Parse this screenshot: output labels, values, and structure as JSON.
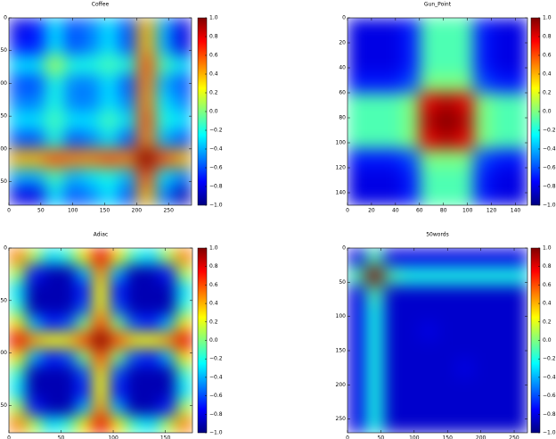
{
  "chart_data": [
    {
      "type": "heatmap",
      "title": "Coffee",
      "colormap": "jet",
      "xlim": [
        0,
        286
      ],
      "ylim": [
        286,
        0
      ],
      "xticks": [
        0,
        50,
        100,
        150,
        200,
        250
      ],
      "yticks": [
        0,
        50,
        100,
        150,
        200,
        250
      ],
      "zlim": [
        -1,
        1
      ],
      "zticks": [
        {
          "value": -1,
          "label": "−1.0"
        },
        {
          "value": -0.8,
          "label": "−0.8"
        },
        {
          "value": -0.6,
          "label": "−0.6"
        },
        {
          "value": -0.4,
          "label": "−0.4"
        },
        {
          "value": -0.2,
          "label": "−0.2"
        },
        {
          "value": 0,
          "label": "0.0"
        },
        {
          "value": 0.2,
          "label": "0.2"
        },
        {
          "value": 0.4,
          "label": "0.4"
        },
        {
          "value": 0.6,
          "label": "0.6"
        },
        {
          "value": 0.8,
          "label": "0.8"
        },
        {
          "value": 1,
          "label": "1.0"
        }
      ],
      "z": [
        [
          -0.8,
          -0.7,
          -0.3,
          -0.6,
          -0.5,
          -0.3,
          -0.6,
          0.4,
          -0.4,
          -0.8
        ],
        [
          -0.7,
          -0.7,
          -0.3,
          -0.6,
          -0.5,
          -0.3,
          -0.6,
          0.4,
          -0.4,
          -0.8
        ],
        [
          -0.3,
          -0.3,
          0.1,
          -0.2,
          -0.2,
          -0.1,
          -0.2,
          0.6,
          -0.1,
          -0.3
        ],
        [
          -0.6,
          -0.6,
          -0.2,
          -0.5,
          -0.5,
          -0.3,
          -0.6,
          0.5,
          -0.4,
          -0.6
        ],
        [
          -0.5,
          -0.5,
          -0.2,
          -0.5,
          -0.5,
          -0.3,
          -0.5,
          0.5,
          -0.3,
          -0.5
        ],
        [
          -0.3,
          -0.3,
          -0.1,
          -0.3,
          -0.3,
          -0.1,
          -0.3,
          0.6,
          -0.2,
          -0.3
        ],
        [
          -0.6,
          -0.6,
          -0.2,
          -0.6,
          -0.5,
          -0.3,
          -0.6,
          0.5,
          -0.4,
          -0.6
        ],
        [
          0.4,
          0.4,
          0.6,
          0.5,
          0.5,
          0.6,
          0.5,
          1.0,
          0.6,
          0.4
        ],
        [
          -0.4,
          -0.4,
          -0.1,
          -0.4,
          -0.3,
          -0.2,
          -0.4,
          0.6,
          -0.3,
          -0.5
        ],
        [
          -0.8,
          -0.8,
          -0.3,
          -0.6,
          -0.5,
          -0.3,
          -0.6,
          0.4,
          -0.5,
          -0.9
        ]
      ]
    },
    {
      "type": "heatmap",
      "title": "Gun_Point",
      "colormap": "jet",
      "xlim": [
        0,
        150
      ],
      "ylim": [
        150,
        0
      ],
      "xticks": [
        0,
        20,
        40,
        60,
        80,
        100,
        120,
        140
      ],
      "yticks": [
        0,
        20,
        40,
        60,
        80,
        100,
        120,
        140
      ],
      "zlim": [
        -1,
        1
      ],
      "zticks": [
        {
          "value": -1,
          "label": "−1.0"
        },
        {
          "value": -0.8,
          "label": "−0.8"
        },
        {
          "value": -0.6,
          "label": "−0.6"
        },
        {
          "value": -0.4,
          "label": "−0.4"
        },
        {
          "value": -0.2,
          "label": "−0.2"
        },
        {
          "value": 0,
          "label": "0.0"
        },
        {
          "value": 0.2,
          "label": "0.2"
        },
        {
          "value": 0.4,
          "label": "0.4"
        },
        {
          "value": 0.6,
          "label": "0.6"
        },
        {
          "value": 0.8,
          "label": "0.8"
        },
        {
          "value": 1,
          "label": "1.0"
        }
      ],
      "z": [
        [
          -0.8,
          -0.8,
          -0.8,
          -0.7,
          -0.1,
          -0.1,
          -0.1,
          -0.7,
          -0.8,
          -0.8
        ],
        [
          -0.8,
          -0.8,
          -0.8,
          -0.7,
          -0.1,
          -0.1,
          -0.1,
          -0.7,
          -0.8,
          -0.8
        ],
        [
          -0.8,
          -0.8,
          -0.8,
          -0.7,
          -0.1,
          -0.1,
          -0.1,
          -0.7,
          -0.8,
          -0.8
        ],
        [
          -0.7,
          -0.7,
          -0.7,
          -0.6,
          0.0,
          0.0,
          0.0,
          -0.6,
          -0.7,
          -0.7
        ],
        [
          -0.1,
          -0.1,
          -0.1,
          0.0,
          0.8,
          0.9,
          0.8,
          0.0,
          -0.1,
          -0.1
        ],
        [
          -0.1,
          -0.1,
          -0.1,
          0.0,
          0.9,
          1.0,
          0.9,
          0.0,
          -0.1,
          -0.1
        ],
        [
          -0.1,
          -0.1,
          -0.1,
          0.0,
          0.8,
          0.9,
          0.8,
          0.0,
          -0.1,
          -0.1
        ],
        [
          -0.7,
          -0.7,
          -0.7,
          -0.6,
          0.0,
          0.0,
          0.0,
          -0.6,
          -0.7,
          -0.7
        ],
        [
          -0.8,
          -0.8,
          -0.8,
          -0.7,
          -0.1,
          -0.1,
          -0.1,
          -0.7,
          -0.8,
          -0.8
        ],
        [
          -0.8,
          -0.8,
          -0.8,
          -0.7,
          -0.1,
          -0.1,
          -0.1,
          -0.7,
          -0.8,
          -0.8
        ]
      ]
    },
    {
      "type": "heatmap",
      "title": "Adiac",
      "colormap": "jet",
      "xlim": [
        0,
        176
      ],
      "ylim": [
        176,
        0
      ],
      "xticks": [
        0,
        50,
        100,
        150
      ],
      "yticks": [
        0,
        50,
        100,
        150
      ],
      "zlim": [
        -1,
        1
      ],
      "zticks": [
        {
          "value": -1,
          "label": "−1.0"
        },
        {
          "value": -0.8,
          "label": "−0.8"
        },
        {
          "value": -0.6,
          "label": "−0.6"
        },
        {
          "value": -0.4,
          "label": "−0.4"
        },
        {
          "value": -0.2,
          "label": "−0.2"
        },
        {
          "value": 0,
          "label": "0.0"
        },
        {
          "value": 0.2,
          "label": "0.2"
        },
        {
          "value": 0.4,
          "label": "0.4"
        },
        {
          "value": 0.6,
          "label": "0.6"
        },
        {
          "value": 0.8,
          "label": "0.8"
        },
        {
          "value": 1,
          "label": "1.0"
        }
      ],
      "z": [
        [
          0.5,
          0.1,
          -0.3,
          -0.15,
          0.3,
          0.8,
          0.3,
          -0.15,
          -0.3,
          0.1,
          0.5
        ],
        [
          0.1,
          -0.7,
          -0.9,
          -0.9,
          -0.4,
          0.45,
          -0.4,
          -0.9,
          -0.9,
          -0.7,
          0.1
        ],
        [
          -0.3,
          -0.9,
          -0.9,
          -0.9,
          -0.7,
          0.25,
          -0.7,
          -0.9,
          -0.9,
          -0.9,
          -0.3
        ],
        [
          -0.15,
          -0.9,
          -0.9,
          -0.9,
          -0.6,
          0.3,
          -0.6,
          -0.9,
          -0.9,
          -0.9,
          -0.15
        ],
        [
          0.3,
          -0.4,
          -0.7,
          -0.6,
          0.0,
          0.6,
          0.0,
          -0.6,
          -0.7,
          -0.4,
          0.3
        ],
        [
          0.8,
          0.45,
          0.25,
          0.3,
          0.6,
          1.0,
          0.6,
          0.3,
          0.25,
          0.45,
          0.8
        ],
        [
          0.3,
          -0.4,
          -0.7,
          -0.6,
          0.0,
          0.6,
          0.0,
          -0.6,
          -0.7,
          -0.4,
          0.3
        ],
        [
          -0.15,
          -0.9,
          -0.9,
          -0.9,
          -0.6,
          0.3,
          -0.6,
          -0.9,
          -0.9,
          -0.9,
          -0.15
        ],
        [
          -0.3,
          -0.9,
          -0.9,
          -0.9,
          -0.7,
          0.25,
          -0.7,
          -0.9,
          -0.9,
          -0.9,
          -0.3
        ],
        [
          0.1,
          -0.7,
          -0.9,
          -0.9,
          -0.4,
          0.45,
          -0.4,
          -0.9,
          -0.9,
          -0.7,
          0.1
        ],
        [
          0.5,
          0.1,
          -0.3,
          -0.15,
          0.3,
          0.8,
          0.3,
          -0.15,
          -0.3,
          0.1,
          0.5
        ]
      ]
    },
    {
      "type": "heatmap",
      "title": "50words",
      "colormap": "jet",
      "xlim": [
        0,
        270
      ],
      "ylim": [
        270,
        0
      ],
      "xticks": [
        0,
        50,
        100,
        150,
        200,
        250
      ],
      "yticks": [
        0,
        50,
        100,
        150,
        200,
        250
      ],
      "zlim": [
        -1,
        1
      ],
      "zticks": [
        {
          "value": -1,
          "label": "−1.0"
        },
        {
          "value": -0.8,
          "label": "−0.8"
        },
        {
          "value": -0.6,
          "label": "−0.6"
        },
        {
          "value": -0.4,
          "label": "−0.4"
        },
        {
          "value": -0.2,
          "label": "−0.2"
        },
        {
          "value": 0,
          "label": "0.0"
        },
        {
          "value": 0.2,
          "label": "0.2"
        },
        {
          "value": 0.4,
          "label": "0.4"
        },
        {
          "value": 0.6,
          "label": "0.6"
        },
        {
          "value": 0.8,
          "label": "0.8"
        },
        {
          "value": 1,
          "label": "1.0"
        }
      ],
      "z": [
        [
          -0.8,
          -0.1,
          -0.8,
          -0.8,
          -0.8,
          -0.8,
          -0.8,
          -0.8,
          -0.8,
          -0.8
        ],
        [
          -0.1,
          1.0,
          -0.1,
          -0.2,
          -0.2,
          -0.2,
          -0.2,
          -0.2,
          -0.2,
          -0.2
        ],
        [
          -0.8,
          -0.1,
          -0.85,
          -0.85,
          -0.85,
          -0.85,
          -0.85,
          -0.85,
          -0.85,
          -0.85
        ],
        [
          -0.8,
          -0.2,
          -0.85,
          -0.85,
          -0.85,
          -0.85,
          -0.85,
          -0.85,
          -0.85,
          -0.85
        ],
        [
          -0.8,
          -0.2,
          -0.85,
          -0.85,
          -0.8,
          -0.85,
          -0.85,
          -0.85,
          -0.85,
          -0.85
        ],
        [
          -0.8,
          -0.2,
          -0.85,
          -0.85,
          -0.85,
          -0.85,
          -0.85,
          -0.85,
          -0.85,
          -0.85
        ],
        [
          -0.8,
          -0.2,
          -0.85,
          -0.85,
          -0.85,
          -0.85,
          -0.8,
          -0.85,
          -0.85,
          -0.85
        ],
        [
          -0.8,
          -0.2,
          -0.85,
          -0.85,
          -0.85,
          -0.85,
          -0.85,
          -0.85,
          -0.85,
          -0.85
        ],
        [
          -0.8,
          -0.2,
          -0.85,
          -0.85,
          -0.85,
          -0.85,
          -0.85,
          -0.85,
          -0.85,
          -0.85
        ],
        [
          -0.8,
          -0.2,
          -0.85,
          -0.85,
          -0.85,
          -0.85,
          -0.85,
          -0.85,
          -0.85,
          -0.85
        ]
      ]
    }
  ]
}
